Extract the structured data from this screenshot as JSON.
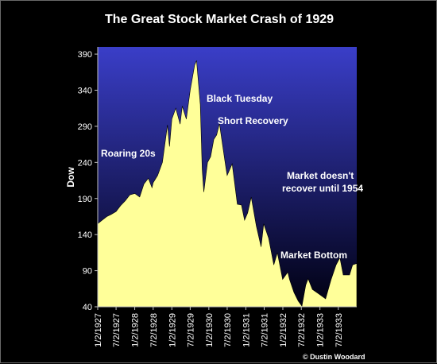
{
  "chart_data": {
    "type": "area",
    "title": "The Great Stock Market Crash of 1929",
    "ylabel": "Dow",
    "xlabel": "",
    "ylim": [
      40,
      400
    ],
    "yticks": [
      40,
      90,
      140,
      190,
      240,
      290,
      340,
      390
    ],
    "xticks": [
      "1/2/1927",
      "7/2/1927",
      "1/2/1928",
      "7/2/1928",
      "1/2/1929",
      "7/2/1929",
      "1/2/1930",
      "7/2/1930",
      "1/2/1931",
      "7/2/1931",
      "1/2/1932",
      "7/2/1932",
      "1/2/1933",
      "7/2/1933"
    ],
    "x_range": [
      "1927-01-02",
      "1933-12-31"
    ],
    "grid": false,
    "colors": {
      "area": "#ffff99",
      "background_top": "#3a3ec8",
      "background_bottom": "#000010",
      "text": "#ffffff"
    },
    "series": [
      {
        "x": [
          "1927-01-02",
          "1927-02-15",
          "1927-04-01",
          "1927-05-15",
          "1927-07-02",
          "1927-08-15",
          "1927-10-01",
          "1927-11-15",
          "1928-01-02",
          "1928-02-20",
          "1928-04-01",
          "1928-05-15",
          "1928-06-20",
          "1928-07-02",
          "1928-08-15",
          "1928-10-01",
          "1928-11-20",
          "1928-12-10",
          "1929-01-02",
          "1929-02-10",
          "1929-03-25",
          "1929-04-15",
          "1929-05-25",
          "1929-07-02",
          "1929-08-15",
          "1929-09-03",
          "1929-10-10",
          "1929-10-29",
          "1929-11-13",
          "1929-12-20",
          "1930-01-20",
          "1930-02-20",
          "1930-03-20",
          "1930-04-17",
          "1930-05-20",
          "1930-06-20",
          "1930-07-02",
          "1930-08-20",
          "1930-10-10",
          "1930-11-20",
          "1930-12-20",
          "1931-01-20",
          "1931-02-24",
          "1931-04-15",
          "1931-06-01",
          "1931-06-27",
          "1931-08-15",
          "1931-10-05",
          "1931-11-09",
          "1931-12-31",
          "1932-02-20",
          "1932-03-08",
          "1932-04-20",
          "1932-06-01",
          "1932-07-08",
          "1932-08-15",
          "1932-09-07",
          "1932-10-20",
          "1932-12-20",
          "1933-02-27",
          "1933-04-20",
          "1933-06-10",
          "1933-07-18",
          "1933-08-20",
          "1933-10-21",
          "1933-11-20",
          "1933-12-31"
        ],
        "values": [
          155,
          160,
          165,
          168,
          172,
          180,
          187,
          195,
          197,
          192,
          210,
          218,
          205,
          212,
          222,
          240,
          292,
          262,
          300,
          315,
          293,
          318,
          300,
          340,
          375,
          381,
          320,
          230,
          199,
          240,
          248,
          272,
          278,
          294,
          262,
          232,
          222,
          238,
          182,
          181,
          160,
          170,
          192,
          152,
          123,
          155,
          135,
          98,
          115,
          78,
          88,
          78,
          60,
          48,
          41,
          70,
          79,
          64,
          58,
          51,
          77,
          98,
          108,
          84,
          84,
          98,
          100
        ]
      }
    ],
    "annotations": [
      {
        "text": "Black Tuesday"
      },
      {
        "text": "Short Recovery"
      },
      {
        "text": "Roaring 20s"
      },
      {
        "text": "Market doesn't"
      },
      {
        "text": "recover until 1954"
      },
      {
        "text": "Market Bottom"
      }
    ],
    "credit": "© Dustin Woodard"
  }
}
